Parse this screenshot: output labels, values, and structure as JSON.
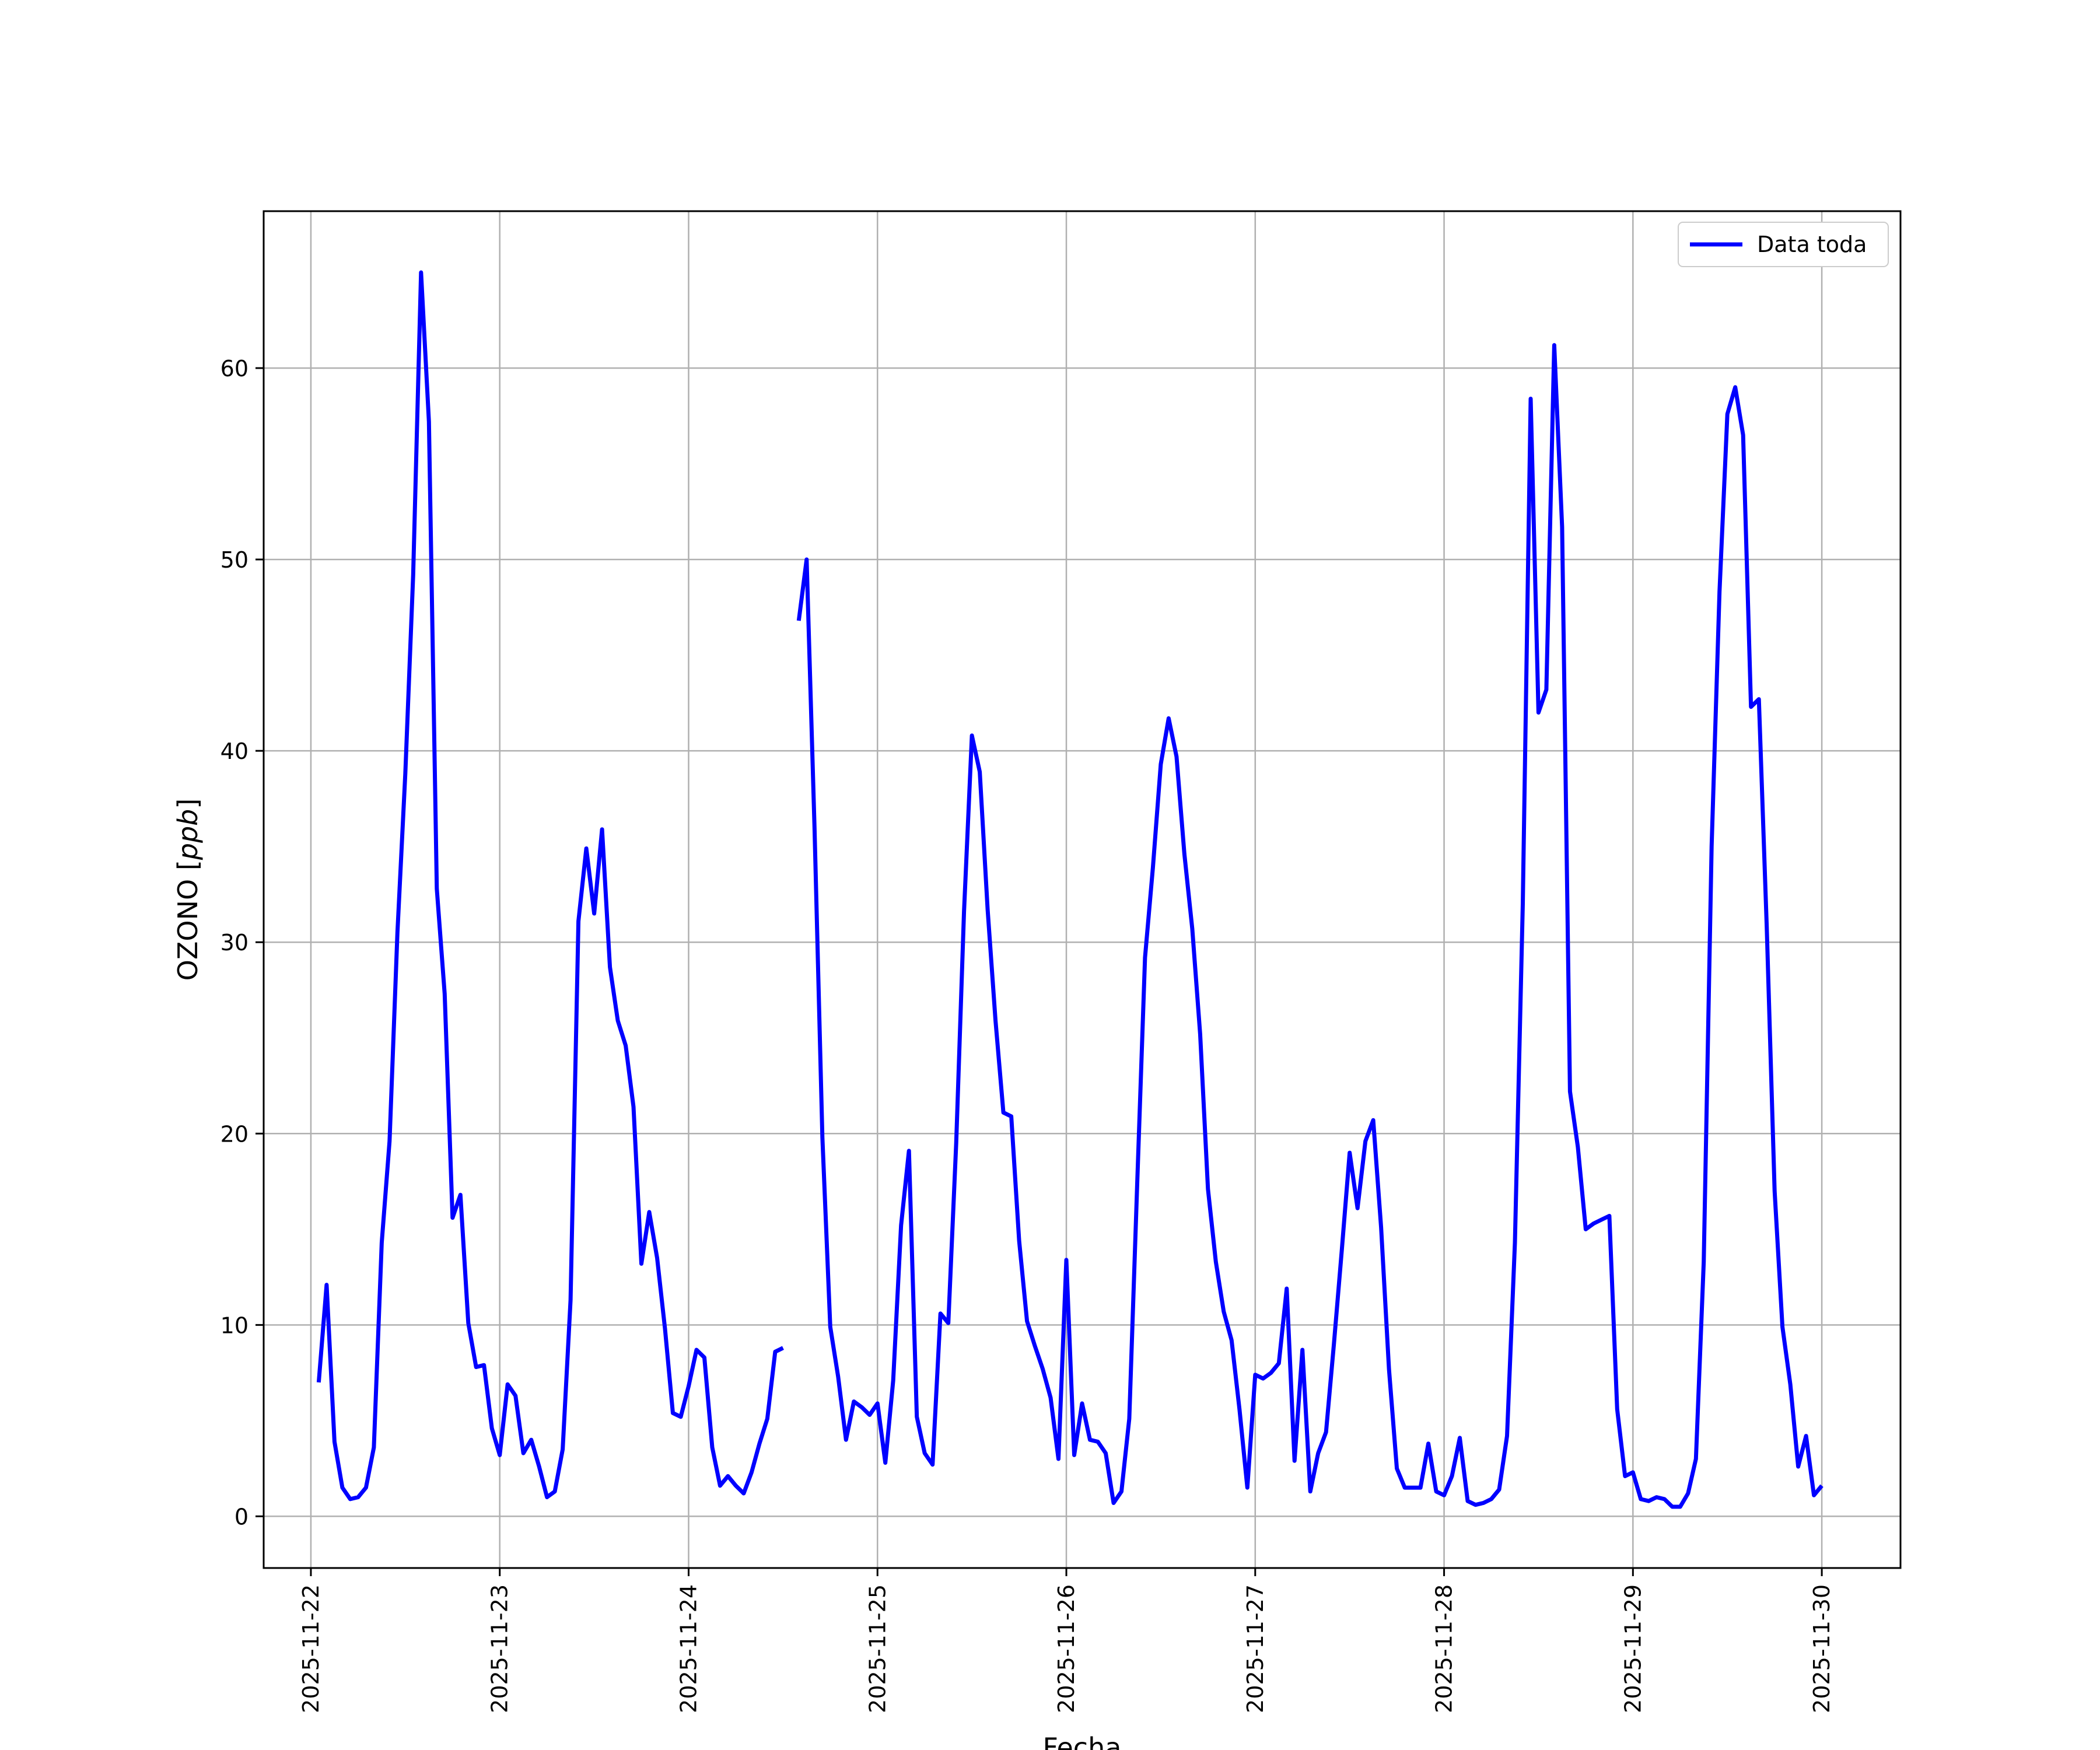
{
  "chart_data": {
    "type": "line",
    "xlabel": "Fecha",
    "ylabel": "OZONO [ppb]",
    "ylabel_main": "OZONO ",
    "ylabel_unit": "ppb",
    "xlim": [
      "2025-11-21 18:00",
      "2025-11-30 10:00"
    ],
    "ylim": [
      -2.7,
      68.2
    ],
    "yticks": [
      0,
      10,
      20,
      30,
      40,
      50,
      60
    ],
    "xticks": [
      "2025-11-22",
      "2025-11-23",
      "2025-11-24",
      "2025-11-25",
      "2025-11-26",
      "2025-11-27",
      "2025-11-28",
      "2025-11-29",
      "2025-11-30"
    ],
    "grid": true,
    "legend": {
      "position": "top-right",
      "entries": [
        "Data toda"
      ]
    },
    "series": [
      {
        "name": "Data toda",
        "color": "#0000ff",
        "segments": [
          [
            [
              "2025-11-22 01:00",
              7.0
            ],
            [
              "2025-11-22 02:00",
              12.1
            ],
            [
              "2025-11-22 03:00",
              3.9
            ],
            [
              "2025-11-22 04:00",
              1.5
            ],
            [
              "2025-11-22 05:00",
              0.9
            ],
            [
              "2025-11-22 06:00",
              1.0
            ],
            [
              "2025-11-22 07:00",
              1.5
            ],
            [
              "2025-11-22 08:00",
              3.6
            ],
            [
              "2025-11-22 09:00",
              14.3
            ],
            [
              "2025-11-22 10:00",
              19.6
            ],
            [
              "2025-11-22 11:00",
              30.5
            ],
            [
              "2025-11-22 12:00",
              38.8
            ],
            [
              "2025-11-22 13:00",
              49.2
            ],
            [
              "2025-11-22 14:00",
              65.0
            ],
            [
              "2025-11-22 15:00",
              57.2
            ],
            [
              "2025-11-22 16:00",
              32.8
            ],
            [
              "2025-11-22 17:00",
              27.3
            ],
            [
              "2025-11-22 18:00",
              15.6
            ],
            [
              "2025-11-22 19:00",
              16.8
            ],
            [
              "2025-11-22 20:00",
              10.1
            ],
            [
              "2025-11-22 21:00",
              7.8
            ],
            [
              "2025-11-22 22:00",
              7.9
            ],
            [
              "2025-11-22 23:00",
              4.6
            ],
            [
              "2025-11-23 00:00",
              3.2
            ],
            [
              "2025-11-23 01:00",
              6.9
            ],
            [
              "2025-11-23 02:00",
              6.3
            ],
            [
              "2025-11-23 03:00",
              3.3
            ],
            [
              "2025-11-23 04:00",
              4.0
            ],
            [
              "2025-11-23 05:00",
              2.6
            ],
            [
              "2025-11-23 06:00",
              1.0
            ],
            [
              "2025-11-23 07:00",
              1.3
            ],
            [
              "2025-11-23 08:00",
              3.5
            ],
            [
              "2025-11-23 09:00",
              11.3
            ],
            [
              "2025-11-23 10:00",
              31.1
            ],
            [
              "2025-11-23 11:00",
              34.9
            ],
            [
              "2025-11-23 12:00",
              31.5
            ],
            [
              "2025-11-23 13:00",
              35.9
            ],
            [
              "2025-11-23 14:00",
              28.7
            ],
            [
              "2025-11-23 15:00",
              25.9
            ],
            [
              "2025-11-23 16:00",
              24.6
            ],
            [
              "2025-11-23 17:00",
              21.4
            ],
            [
              "2025-11-23 18:00",
              13.2
            ],
            [
              "2025-11-23 19:00",
              15.9
            ],
            [
              "2025-11-23 20:00",
              13.5
            ],
            [
              "2025-11-23 21:00",
              9.8
            ],
            [
              "2025-11-23 22:00",
              5.4
            ],
            [
              "2025-11-23 23:00",
              5.2
            ],
            [
              "2025-11-24 00:00",
              6.8
            ],
            [
              "2025-11-24 01:00",
              8.7
            ],
            [
              "2025-11-24 02:00",
              8.3
            ],
            [
              "2025-11-24 03:00",
              3.6
            ],
            [
              "2025-11-24 04:00",
              1.6
            ],
            [
              "2025-11-24 05:00",
              2.1
            ],
            [
              "2025-11-24 06:00",
              1.6
            ],
            [
              "2025-11-24 07:00",
              1.2
            ],
            [
              "2025-11-24 08:00",
              2.3
            ],
            [
              "2025-11-24 09:00",
              3.8
            ],
            [
              "2025-11-24 10:00",
              5.1
            ],
            [
              "2025-11-24 11:00",
              8.6
            ],
            [
              "2025-11-24 12:00",
              8.8
            ]
          ],
          [
            [
              "2025-11-24 14:00",
              46.8
            ],
            [
              "2025-11-24 15:00",
              50.0
            ],
            [
              "2025-11-24 16:00",
              36.0
            ],
            [
              "2025-11-24 17:00",
              19.8
            ],
            [
              "2025-11-24 18:00",
              9.9
            ],
            [
              "2025-11-24 19:00",
              7.3
            ],
            [
              "2025-11-24 20:00",
              4.0
            ],
            [
              "2025-11-24 21:00",
              6.0
            ],
            [
              "2025-11-24 22:00",
              5.7
            ],
            [
              "2025-11-24 23:00",
              5.3
            ],
            [
              "2025-11-25 00:00",
              5.9
            ],
            [
              "2025-11-25 01:00",
              2.8
            ],
            [
              "2025-11-25 02:00",
              7.1
            ],
            [
              "2025-11-25 03:00",
              15.2
            ],
            [
              "2025-11-25 04:00",
              19.1
            ],
            [
              "2025-11-25 05:00",
              5.2
            ],
            [
              "2025-11-25 06:00",
              3.3
            ],
            [
              "2025-11-25 07:00",
              2.7
            ],
            [
              "2025-11-25 08:00",
              10.6
            ],
            [
              "2025-11-25 09:00",
              10.1
            ],
            [
              "2025-11-25 10:00",
              19.5
            ],
            [
              "2025-11-25 11:00",
              31.6
            ],
            [
              "2025-11-25 12:00",
              40.8
            ],
            [
              "2025-11-25 13:00",
              38.9
            ],
            [
              "2025-11-25 14:00",
              31.7
            ],
            [
              "2025-11-25 15:00",
              25.9
            ],
            [
              "2025-11-25 16:00",
              21.1
            ],
            [
              "2025-11-25 17:00",
              20.9
            ],
            [
              "2025-11-25 18:00",
              14.4
            ],
            [
              "2025-11-25 19:00",
              10.2
            ],
            [
              "2025-11-25 20:00",
              8.9
            ],
            [
              "2025-11-25 21:00",
              7.7
            ],
            [
              "2025-11-25 22:00",
              6.2
            ],
            [
              "2025-11-25 23:00",
              3.0
            ],
            [
              "2025-11-26 00:00",
              13.4
            ],
            [
              "2025-11-26 01:00",
              3.2
            ],
            [
              "2025-11-26 02:00",
              5.9
            ],
            [
              "2025-11-26 03:00",
              4.0
            ],
            [
              "2025-11-26 04:00",
              3.9
            ],
            [
              "2025-11-26 05:00",
              3.3
            ],
            [
              "2025-11-26 06:00",
              0.7
            ],
            [
              "2025-11-26 07:00",
              1.3
            ],
            [
              "2025-11-26 08:00",
              5.1
            ],
            [
              "2025-11-26 09:00",
              17.3
            ],
            [
              "2025-11-26 10:00",
              29.2
            ],
            [
              "2025-11-26 11:00",
              33.9
            ],
            [
              "2025-11-26 12:00",
              39.3
            ],
            [
              "2025-11-26 13:00",
              41.7
            ],
            [
              "2025-11-26 14:00",
              39.7
            ],
            [
              "2025-11-26 15:00",
              34.6
            ],
            [
              "2025-11-26 16:00",
              30.7
            ],
            [
              "2025-11-26 17:00",
              25.2
            ],
            [
              "2025-11-26 18:00",
              17.1
            ],
            [
              "2025-11-26 19:00",
              13.3
            ],
            [
              "2025-11-26 20:00",
              10.7
            ],
            [
              "2025-11-26 21:00",
              9.2
            ],
            [
              "2025-11-26 22:00",
              5.6
            ],
            [
              "2025-11-26 23:00",
              1.5
            ],
            [
              "2025-11-27 00:00",
              7.4
            ],
            [
              "2025-11-27 01:00",
              7.2
            ],
            [
              "2025-11-27 02:00",
              7.5
            ],
            [
              "2025-11-27 03:00",
              8.0
            ],
            [
              "2025-11-27 04:00",
              11.9
            ],
            [
              "2025-11-27 05:00",
              2.9
            ],
            [
              "2025-11-27 06:00",
              8.7
            ],
            [
              "2025-11-27 07:00",
              1.3
            ],
            [
              "2025-11-27 08:00",
              3.3
            ],
            [
              "2025-11-27 09:00",
              4.4
            ],
            [
              "2025-11-27 10:00",
              9.0
            ],
            [
              "2025-11-27 11:00",
              13.9
            ],
            [
              "2025-11-27 12:00",
              19.0
            ],
            [
              "2025-11-27 13:00",
              16.1
            ],
            [
              "2025-11-27 14:00",
              19.6
            ],
            [
              "2025-11-27 15:00",
              20.7
            ],
            [
              "2025-11-27 16:00",
              15.1
            ],
            [
              "2025-11-27 17:00",
              7.7
            ],
            [
              "2025-11-27 18:00",
              2.5
            ],
            [
              "2025-11-27 19:00",
              1.5
            ],
            [
              "2025-11-27 20:00",
              1.5
            ],
            [
              "2025-11-27 21:00",
              1.5
            ],
            [
              "2025-11-27 22:00",
              3.8
            ],
            [
              "2025-11-27 23:00",
              1.3
            ],
            [
              "2025-11-28 00:00",
              1.1
            ],
            [
              "2025-11-28 01:00",
              2.1
            ],
            [
              "2025-11-28 02:00",
              4.1
            ],
            [
              "2025-11-28 03:00",
              0.8
            ],
            [
              "2025-11-28 04:00",
              0.6
            ],
            [
              "2025-11-28 05:00",
              0.7
            ],
            [
              "2025-11-28 06:00",
              0.9
            ],
            [
              "2025-11-28 07:00",
              1.4
            ],
            [
              "2025-11-28 08:00",
              4.2
            ],
            [
              "2025-11-28 09:00",
              14.3
            ],
            [
              "2025-11-28 10:00",
              32.0
            ],
            [
              "2025-11-28 11:00",
              58.4
            ],
            [
              "2025-11-28 12:00",
              42.0
            ],
            [
              "2025-11-28 13:00",
              43.2
            ],
            [
              "2025-11-28 14:00",
              61.2
            ],
            [
              "2025-11-28 15:00",
              51.7
            ],
            [
              "2025-11-28 16:00",
              22.2
            ],
            [
              "2025-11-28 17:00",
              19.3
            ],
            [
              "2025-11-28 18:00",
              15.0
            ],
            [
              "2025-11-28 19:00",
              15.3
            ],
            [
              "2025-11-28 20:00",
              15.5
            ],
            [
              "2025-11-28 21:00",
              15.7
            ],
            [
              "2025-11-28 22:00",
              5.6
            ],
            [
              "2025-11-28 23:00",
              2.1
            ],
            [
              "2025-11-29 00:00",
              2.3
            ],
            [
              "2025-11-29 01:00",
              0.9
            ],
            [
              "2025-11-29 02:00",
              0.8
            ],
            [
              "2025-11-29 03:00",
              1.0
            ],
            [
              "2025-11-29 04:00",
              0.9
            ],
            [
              "2025-11-29 05:00",
              0.5
            ],
            [
              "2025-11-29 06:00",
              0.5
            ],
            [
              "2025-11-29 07:00",
              1.2
            ],
            [
              "2025-11-29 08:00",
              3.0
            ],
            [
              "2025-11-29 09:00",
              13.3
            ],
            [
              "2025-11-29 10:00",
              35.0
            ],
            [
              "2025-11-29 11:00",
              48.3
            ],
            [
              "2025-11-29 12:00",
              57.6
            ],
            [
              "2025-11-29 13:00",
              59.0
            ],
            [
              "2025-11-29 14:00",
              56.5
            ],
            [
              "2025-11-29 15:00",
              42.3
            ],
            [
              "2025-11-29 16:00",
              42.7
            ],
            [
              "2025-11-29 17:00",
              30.8
            ],
            [
              "2025-11-29 18:00",
              17.0
            ],
            [
              "2025-11-29 19:00",
              9.9
            ],
            [
              "2025-11-29 20:00",
              6.9
            ],
            [
              "2025-11-29 21:00",
              2.6
            ],
            [
              "2025-11-29 22:00",
              4.2
            ],
            [
              "2025-11-29 23:00",
              1.1
            ],
            [
              "2025-11-30 00:00",
              1.6
            ]
          ]
        ]
      }
    ]
  }
}
